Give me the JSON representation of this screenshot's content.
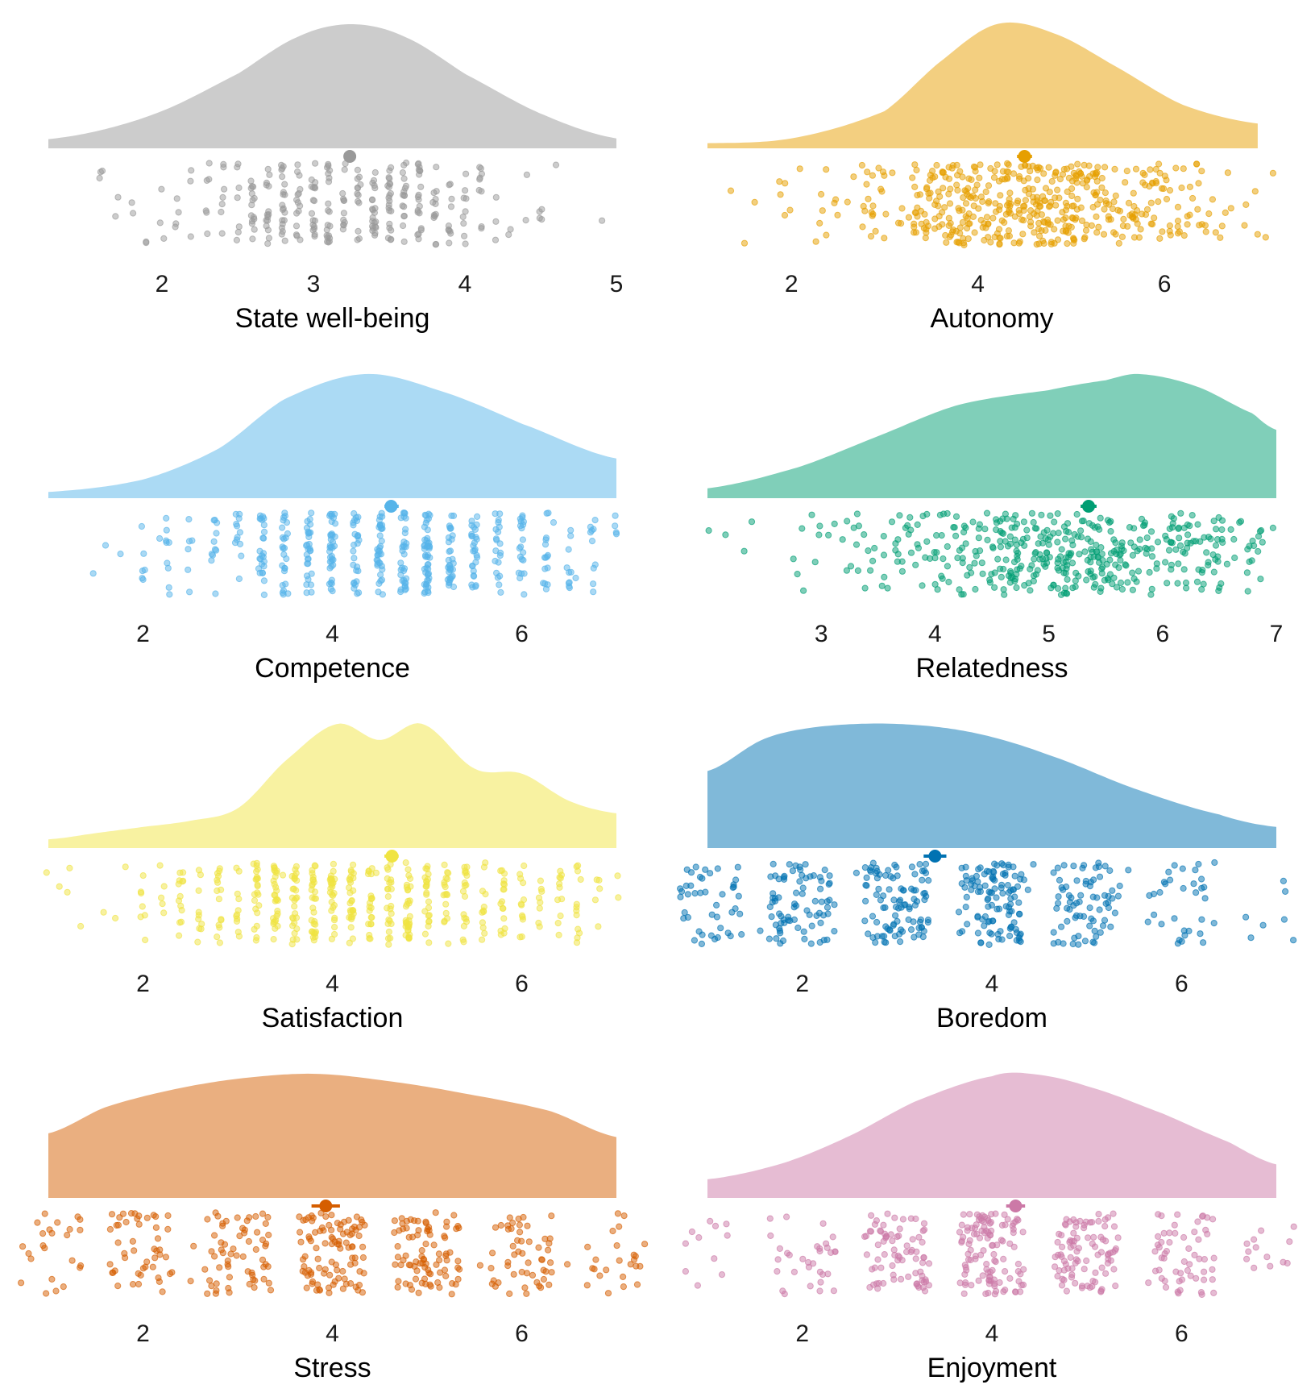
{
  "chart_data": [
    {
      "type": "raincloud",
      "xlabel": "State well-being",
      "xticks": [
        2,
        3,
        4,
        5
      ],
      "xlim": [
        1.25,
        5.0
      ],
      "mean": 3.24,
      "ci": [
        3.2,
        3.28
      ],
      "color": "#999999",
      "density": [
        [
          1.0,
          0.05
        ],
        [
          1.5,
          0.12
        ],
        [
          2.0,
          0.3
        ],
        [
          2.5,
          0.6
        ],
        [
          2.9,
          0.9
        ],
        [
          3.25,
          1.0
        ],
        [
          3.6,
          0.9
        ],
        [
          4.0,
          0.6
        ],
        [
          4.5,
          0.28
        ],
        [
          5.0,
          0.08
        ]
      ],
      "points": {
        "n": 300,
        "discrete_step": 0.1,
        "min": 1.25,
        "max": 5.0,
        "mean": 3.2,
        "sd": 0.65
      }
    },
    {
      "type": "raincloud",
      "xlabel": "Autonomy",
      "xticks": [
        2,
        4,
        6
      ],
      "xlim": [
        1.1,
        7.2
      ],
      "mean": 4.5,
      "ci": [
        4.42,
        4.58
      ],
      "color": "#E69F00",
      "density": [
        [
          1.0,
          0.04
        ],
        [
          2.0,
          0.08
        ],
        [
          3.0,
          0.3
        ],
        [
          3.6,
          0.7
        ],
        [
          4.2,
          1.0
        ],
        [
          4.8,
          0.93
        ],
        [
          5.5,
          0.65
        ],
        [
          6.2,
          0.35
        ],
        [
          7.0,
          0.2
        ]
      ],
      "points": {
        "n": 500,
        "discrete_step": null,
        "min": 1.1,
        "max": 7.2,
        "mean": 4.6,
        "sd": 1.15
      }
    },
    {
      "type": "raincloud",
      "xlabel": "Competence",
      "xticks": [
        2,
        4,
        6
      ],
      "xlim": [
        1.0,
        7.0
      ],
      "mean": 4.62,
      "ci": [
        4.55,
        4.7
      ],
      "color": "#56B4E9",
      "density": [
        [
          1.0,
          0.05
        ],
        [
          2.0,
          0.15
        ],
        [
          2.8,
          0.4
        ],
        [
          3.5,
          0.8
        ],
        [
          4.35,
          1.0
        ],
        [
          5.2,
          0.85
        ],
        [
          6.0,
          0.6
        ],
        [
          7.0,
          0.32
        ]
      ],
      "points": {
        "n": 450,
        "discrete_step": 0.25,
        "min": 1.0,
        "max": 7.0,
        "mean": 4.6,
        "sd": 1.2
      }
    },
    {
      "type": "raincloud",
      "xlabel": "Relatedness",
      "xticks": [
        3,
        4,
        5,
        6,
        7
      ],
      "xlim": [
        2.0,
        7.0
      ],
      "mean": 5.35,
      "ci": [
        5.28,
        5.42
      ],
      "color": "#009E73",
      "density": [
        [
          2.0,
          0.08
        ],
        [
          2.8,
          0.25
        ],
        [
          3.5,
          0.5
        ],
        [
          4.2,
          0.75
        ],
        [
          5.0,
          0.87
        ],
        [
          5.5,
          0.95
        ],
        [
          5.8,
          1.0
        ],
        [
          6.3,
          0.9
        ],
        [
          6.8,
          0.68
        ],
        [
          7.0,
          0.55
        ]
      ],
      "points": {
        "n": 450,
        "discrete_step": null,
        "min": 2.0,
        "max": 7.0,
        "mean": 5.3,
        "sd": 1.05
      }
    },
    {
      "type": "raincloud",
      "xlabel": "Satisfaction",
      "xticks": [
        2,
        4,
        6
      ],
      "xlim": [
        1.0,
        7.0
      ],
      "mean": 4.63,
      "ci": [
        4.55,
        4.7
      ],
      "color": "#F0E442",
      "density": [
        [
          1.0,
          0.07
        ],
        [
          1.5,
          0.12
        ],
        [
          2.0,
          0.17
        ],
        [
          2.5,
          0.22
        ],
        [
          3.0,
          0.32
        ],
        [
          3.5,
          0.7
        ],
        [
          4.05,
          1.0
        ],
        [
          4.5,
          0.87
        ],
        [
          4.95,
          1.0
        ],
        [
          5.5,
          0.64
        ],
        [
          6.0,
          0.6
        ],
        [
          6.5,
          0.38
        ],
        [
          7.0,
          0.28
        ]
      ],
      "points": {
        "n": 450,
        "discrete_step": 0.2,
        "min": 0.7,
        "max": 7.3,
        "mean": 4.5,
        "sd": 1.25
      }
    },
    {
      "type": "raincloud",
      "xlabel": "Boredom",
      "xticks": [
        2,
        4,
        6
      ],
      "xlim": [
        1.0,
        7.0
      ],
      "mean": 3.4,
      "ci": [
        3.28,
        3.52
      ],
      "color": "#0072B2",
      "density": [
        [
          1.0,
          0.62
        ],
        [
          1.6,
          0.88
        ],
        [
          2.2,
          0.98
        ],
        [
          3.0,
          1.0
        ],
        [
          3.8,
          0.93
        ],
        [
          4.6,
          0.75
        ],
        [
          5.5,
          0.48
        ],
        [
          6.4,
          0.27
        ],
        [
          7.0,
          0.17
        ]
      ],
      "points": {
        "n": 450,
        "discrete_step": 1,
        "min": 0.7,
        "max": 7.3,
        "mean": 3.2,
        "sd": 1.6
      }
    },
    {
      "type": "raincloud",
      "xlabel": "Stress",
      "xticks": [
        2,
        4,
        6
      ],
      "xlim": [
        1.0,
        7.0
      ],
      "mean": 3.93,
      "ci": [
        3.78,
        4.08
      ],
      "color": "#D55E00",
      "density": [
        [
          1.0,
          0.52
        ],
        [
          1.6,
          0.73
        ],
        [
          2.3,
          0.87
        ],
        [
          3.0,
          0.96
        ],
        [
          3.8,
          1.0
        ],
        [
          4.6,
          0.94
        ],
        [
          5.4,
          0.84
        ],
        [
          6.3,
          0.7
        ],
        [
          7.0,
          0.49
        ]
      ],
      "points": {
        "n": 400,
        "discrete_step": 1,
        "min": 0.7,
        "max": 7.3,
        "mean": 4.0,
        "sd": 1.75
      }
    },
    {
      "type": "raincloud",
      "xlabel": "Enjoyment",
      "xticks": [
        2,
        4,
        6
      ],
      "xlim": [
        1.0,
        7.0
      ],
      "mean": 4.25,
      "ci": [
        4.15,
        4.35
      ],
      "color": "#CC79A7",
      "density": [
        [
          1.0,
          0.15
        ],
        [
          1.8,
          0.28
        ],
        [
          2.5,
          0.5
        ],
        [
          3.2,
          0.78
        ],
        [
          4.0,
          0.98
        ],
        [
          4.4,
          1.0
        ],
        [
          5.0,
          0.9
        ],
        [
          5.8,
          0.68
        ],
        [
          6.5,
          0.45
        ],
        [
          7.0,
          0.27
        ]
      ],
      "points": {
        "n": 400,
        "discrete_step": 1,
        "min": 0.7,
        "max": 7.3,
        "mean": 4.2,
        "sd": 1.4
      }
    }
  ]
}
